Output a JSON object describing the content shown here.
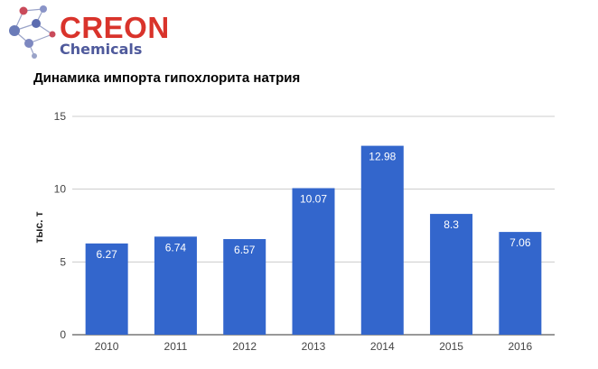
{
  "logo": {
    "word1": "CREON",
    "word2": "Chemicals",
    "colors": {
      "primary": "#d9332b",
      "secondary": "#4f5a9c"
    }
  },
  "chart_data": {
    "type": "bar",
    "title": "Динамика импорта гипохлорита натрия",
    "xlabel": "",
    "ylabel": "тыс. т",
    "categories": [
      "2010",
      "2011",
      "2012",
      "2013",
      "2014",
      "2015",
      "2016"
    ],
    "values": [
      6.27,
      6.74,
      6.57,
      10.07,
      12.98,
      8.3,
      7.06
    ],
    "data_labels": [
      "6.27",
      "6.74",
      "6.57",
      "10.07",
      "12.98",
      "8.3",
      "7.06"
    ],
    "ylim": [
      0,
      15
    ],
    "yticks": [
      0,
      5,
      10,
      15
    ],
    "grid": true,
    "legend": "none",
    "bar_color": "#3366cc"
  }
}
